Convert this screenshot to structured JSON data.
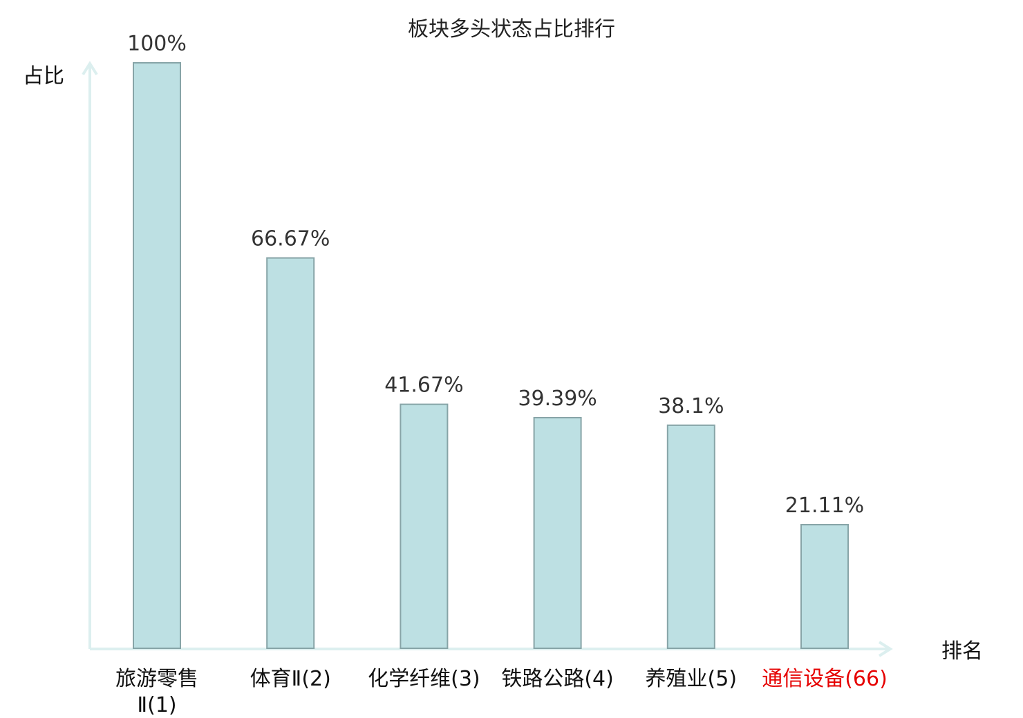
{
  "chart_data": {
    "type": "bar",
    "title": "板块多头状态占比排行",
    "ylabel": "占比",
    "xlabel": "排名",
    "ylim": [
      0,
      100
    ],
    "grid": false,
    "categories": [
      {
        "label": "旅游零售Ⅱ(1)",
        "lines": [
          "旅游零售",
          "Ⅱ(1)"
        ],
        "highlight": false
      },
      {
        "label": "体育Ⅱ(2)",
        "lines": [
          "体育Ⅱ(2)"
        ],
        "highlight": false
      },
      {
        "label": "化学纤维(3)",
        "lines": [
          "化学纤维(3)"
        ],
        "highlight": false
      },
      {
        "label": "铁路公路(4)",
        "lines": [
          "铁路公路(4)"
        ],
        "highlight": false
      },
      {
        "label": "养殖业(5)",
        "lines": [
          "养殖业(5)"
        ],
        "highlight": false
      },
      {
        "label": "通信设备(66)",
        "lines": [
          "通信设备(66)"
        ],
        "highlight": true
      }
    ],
    "values": [
      100,
      66.67,
      41.67,
      39.39,
      38.1,
      21.11
    ],
    "value_labels": [
      "100%",
      "66.67%",
      "41.67%",
      "39.39%",
      "38.1%",
      "21.11%"
    ],
    "colors": {
      "bar_fill": "#bde0e3",
      "bar_stroke": "#87a4a7",
      "axis": "#dcefef",
      "highlight_text": "#e60000"
    }
  }
}
